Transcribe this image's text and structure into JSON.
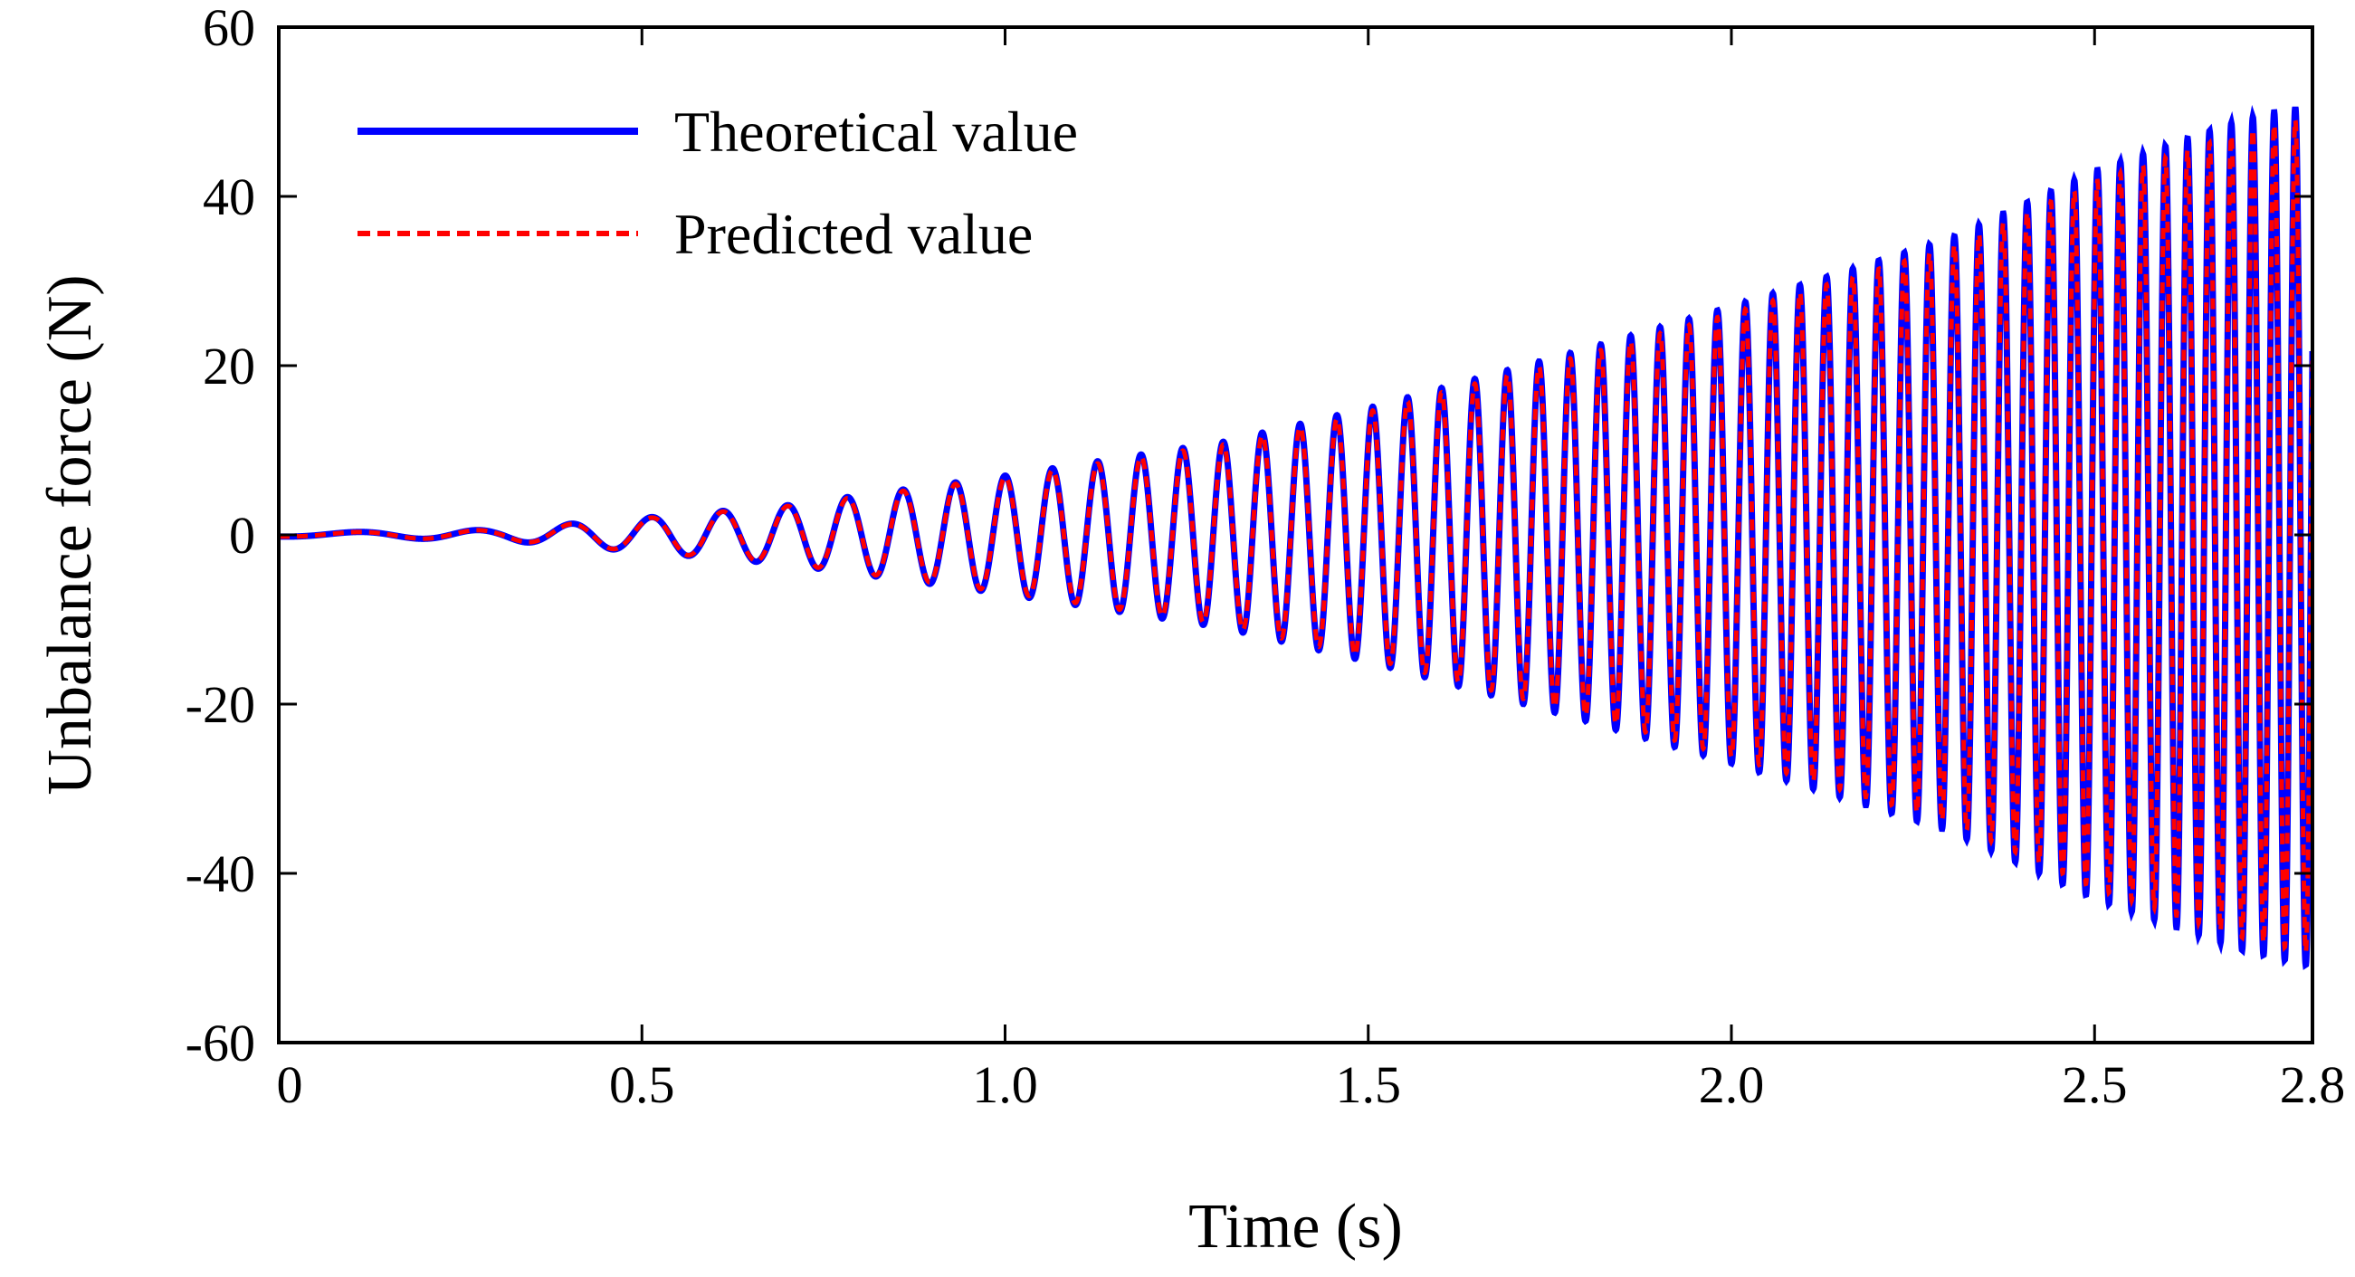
{
  "chart_data": {
    "type": "line",
    "title": "",
    "xlabel": "Time (s)",
    "ylabel": "Unbalance force  (N)",
    "xlim": [
      0,
      2.8
    ],
    "ylim": [
      -60,
      60
    ],
    "x_ticks": [
      {
        "value": 0,
        "label": "0"
      },
      {
        "value": 0.5,
        "label": "0.5"
      },
      {
        "value": 1.0,
        "label": "1.0"
      },
      {
        "value": 1.5,
        "label": "1.5"
      },
      {
        "value": 2.0,
        "label": "2.0"
      },
      {
        "value": 2.5,
        "label": "2.5"
      },
      {
        "value": 2.8,
        "label": "2.8"
      }
    ],
    "y_ticks": [
      {
        "value": 60,
        "label": "60"
      },
      {
        "value": 40,
        "label": "40"
      },
      {
        "value": 20,
        "label": "20"
      },
      {
        "value": 0,
        "label": "0"
      },
      {
        "value": -20,
        "label": "-20"
      },
      {
        "value": -40,
        "label": "-40"
      },
      {
        "value": -60,
        "label": "-60"
      }
    ],
    "grid": false,
    "legend_position": "top-left",
    "signal": {
      "description": "chirp sinusoid with amplitude growing with time",
      "frequency_hz_at_start": 4,
      "frequency_slope_hz_per_s": 11,
      "envelope_points": [
        {
          "t": 0.0,
          "amp": 0.2
        },
        {
          "t": 0.3,
          "amp": 0.6
        },
        {
          "t": 0.5,
          "amp": 2.0
        },
        {
          "t": 0.7,
          "amp": 3.5
        },
        {
          "t": 1.0,
          "amp": 7.0
        },
        {
          "t": 1.3,
          "amp": 11.0
        },
        {
          "t": 1.5,
          "amp": 15.0
        },
        {
          "t": 1.8,
          "amp": 22.0
        },
        {
          "t": 2.0,
          "amp": 27.0
        },
        {
          "t": 2.3,
          "amp": 35.0
        },
        {
          "t": 2.5,
          "amp": 43.0
        },
        {
          "t": 2.7,
          "amp": 49.0
        },
        {
          "t": 2.8,
          "amp": 51.0
        }
      ]
    },
    "series": [
      {
        "name": "Theoretical value",
        "color": "#0000ff",
        "style": "solid",
        "amplitude_scale": 1.0
      },
      {
        "name": "Predicted value",
        "color": "#ff0000",
        "style": "dashed",
        "amplitude_scale": 0.97
      }
    ]
  }
}
